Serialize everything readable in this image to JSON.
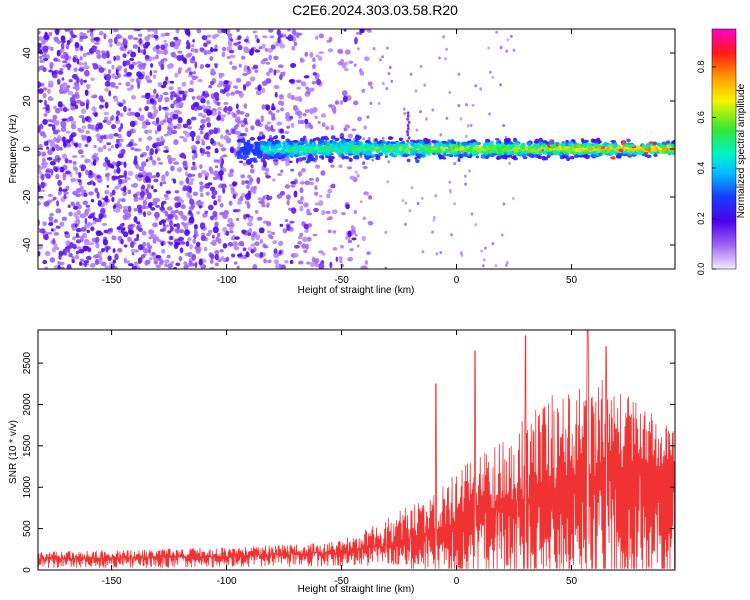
{
  "title": "C2E6.2024.303.03.58.R20",
  "chart_data": [
    {
      "type": "heatmap",
      "title": "",
      "xlabel": "Height of straight line (km)",
      "ylabel": "Frequency (Hz)",
      "xlim": [
        -182,
        95
      ],
      "ylim": [
        -50,
        50
      ],
      "xticks": [
        -150,
        -100,
        -50,
        0,
        50
      ],
      "yticks": [
        -40,
        -20,
        0,
        20,
        40
      ],
      "colorbar": {
        "label": "Normalized spectral amplitude",
        "range": [
          0,
          0.95
        ],
        "ticks": [
          "0.0",
          "0.2",
          "0.4",
          "0.6",
          "0.8"
        ],
        "colormap": "rainbow (violet - blue - cyan - green - yellow - orange - red - magenta)"
      },
      "features": {
        "ridge_center_hz": 0,
        "ridge_start_km": -95,
        "noise_cutoff_km": -45,
        "spike_km": -21,
        "spike_hz": 15
      },
      "colors": {
        "low": "#e2cdf7",
        "mid": "#7a1cf2",
        "high": "#ff2a1a"
      }
    },
    {
      "type": "line",
      "title": "",
      "xlabel": "Height of straight line (km)",
      "ylabel": "SNR (10 * v/v)",
      "xlim": [
        -182,
        95
      ],
      "ylim": [
        0,
        2900
      ],
      "xticks": [
        -150,
        -100,
        -50,
        0,
        50
      ],
      "yticks": [
        0,
        500,
        1000,
        1500,
        2000,
        2500
      ],
      "series": [
        {
          "color": "#f03232",
          "envelope_km": [
            -182,
            -100,
            -60,
            -45,
            -30,
            -10,
            0,
            20,
            40,
            60,
            95
          ],
          "envelope_snr": [
            220,
            270,
            320,
            420,
            650,
            900,
            1200,
            1600,
            2100,
            2400,
            1700
          ],
          "base_km": [
            -182,
            -100,
            -50,
            -30,
            0,
            20,
            40,
            60,
            95
          ],
          "base_snr": [
            130,
            160,
            200,
            280,
            550,
            750,
            950,
            1100,
            1250
          ],
          "peaks": [
            {
              "km": -9,
              "snr": 2250
            },
            {
              "km": 8,
              "snr": 2650
            },
            {
              "km": 30,
              "snr": 2830
            },
            {
              "km": 57,
              "snr": 2900
            },
            {
              "km": 65,
              "snr": 2700
            }
          ]
        }
      ]
    }
  ]
}
